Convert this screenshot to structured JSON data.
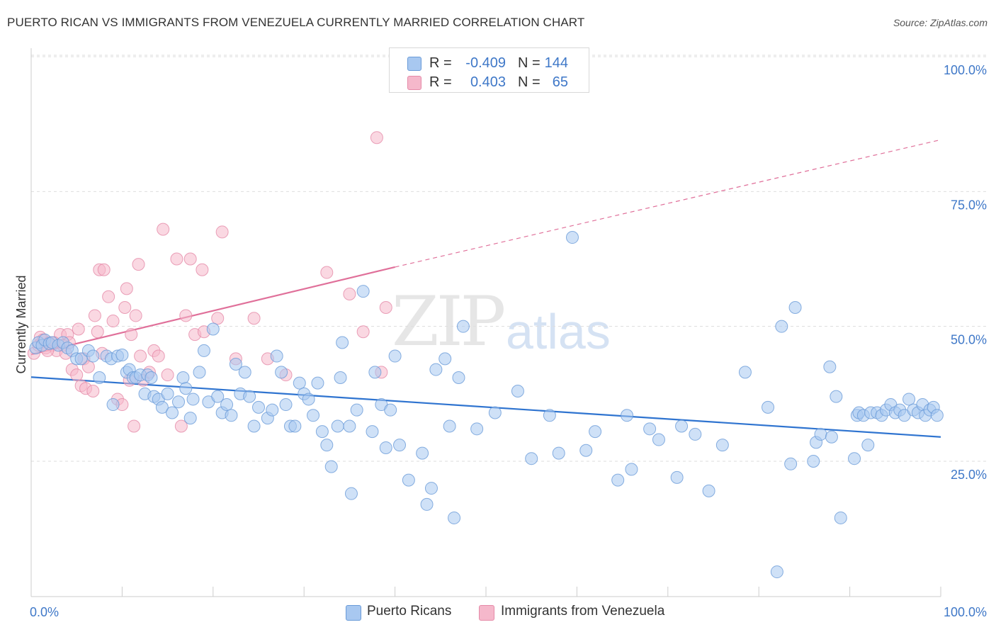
{
  "title": "PUERTO RICAN VS IMMIGRANTS FROM VENEZUELA CURRENTLY MARRIED CORRELATION CHART",
  "source": "Source: ZipAtlas.com",
  "watermark": {
    "zip": "ZIP",
    "atlas": "atlas"
  },
  "legend": {
    "rows": [
      {
        "r_label": "R =",
        "r_value": "-0.409",
        "n_label": "N =",
        "n_value": "144",
        "color": "#a8c8f0",
        "border": "#6a9bd8"
      },
      {
        "r_label": "R =",
        "r_value": "0.403",
        "n_label": "N =",
        "n_value": "65",
        "color": "#f5b8cb",
        "border": "#e58aa8"
      }
    ]
  },
  "bottom_legend": {
    "series1": "Puerto Ricans",
    "series2": "Immigrants from Venezuela"
  },
  "colors": {
    "blue_fill": "#a8c8f0",
    "blue_stroke": "#6a9bd8",
    "blue_line": "#2f74d0",
    "pink_fill": "#f5b8cb",
    "pink_stroke": "#e58aa8",
    "pink_line": "#e0709a",
    "tick_text": "#3f78c8",
    "grid": "#dddddd"
  },
  "chart_data": {
    "type": "scatter",
    "title": "PUERTO RICAN VS IMMIGRANTS FROM VENEZUELA CURRENTLY MARRIED CORRELATION CHART",
    "xlabel": "",
    "ylabel": "Currently Married",
    "xlim": [
      0,
      100
    ],
    "ylim": [
      0,
      105
    ],
    "x_tick_labels": [
      "0.0%",
      "100.0%"
    ],
    "y_tick_labels": [
      "25.0%",
      "50.0%",
      "75.0%",
      "100.0%"
    ],
    "y_ticks": [
      25,
      50,
      75,
      100
    ],
    "grid": "horizontal dashed",
    "legend_placement": "top-center",
    "series": [
      {
        "name": "Puerto Ricans",
        "color": "#a8c8f0",
        "trend": {
          "x": [
            0,
            100
          ],
          "y": [
            40.6,
            29.5
          ],
          "style": "solid"
        },
        "points": [
          [
            0.5,
            46
          ],
          [
            0.8,
            47
          ],
          [
            1.2,
            46.5
          ],
          [
            1.5,
            47.5
          ],
          [
            2.0,
            46.8
          ],
          [
            2.3,
            47
          ],
          [
            3.0,
            46.5
          ],
          [
            3.5,
            47
          ],
          [
            4.0,
            46
          ],
          [
            4.5,
            45.5
          ],
          [
            5.0,
            44
          ],
          [
            5.5,
            44
          ],
          [
            6.3,
            45.5
          ],
          [
            6.8,
            44.5
          ],
          [
            7.5,
            40.5
          ],
          [
            8.3,
            44.5
          ],
          [
            8.8,
            44
          ],
          [
            9.0,
            35.5
          ],
          [
            9.5,
            44.5
          ],
          [
            10.0,
            44.7
          ],
          [
            10.5,
            41.5
          ],
          [
            10.8,
            42
          ],
          [
            11.2,
            40.5
          ],
          [
            11.5,
            40.5
          ],
          [
            12.0,
            41
          ],
          [
            12.5,
            37.5
          ],
          [
            12.8,
            41
          ],
          [
            13.2,
            40.5
          ],
          [
            13.5,
            37
          ],
          [
            14.0,
            36.5
          ],
          [
            14.4,
            35
          ],
          [
            15.0,
            37.5
          ],
          [
            15.5,
            34
          ],
          [
            16.2,
            36
          ],
          [
            16.7,
            40.5
          ],
          [
            17.0,
            38.5
          ],
          [
            17.5,
            33
          ],
          [
            17.8,
            36.5
          ],
          [
            18.5,
            41.5
          ],
          [
            19.0,
            45.5
          ],
          [
            19.5,
            36
          ],
          [
            20.0,
            49.5
          ],
          [
            20.5,
            37
          ],
          [
            21.0,
            34
          ],
          [
            21.5,
            35.5
          ],
          [
            22.0,
            33.5
          ],
          [
            22.5,
            43
          ],
          [
            23.0,
            37.5
          ],
          [
            23.5,
            41.5
          ],
          [
            24.0,
            37
          ],
          [
            24.5,
            31.5
          ],
          [
            25.0,
            35
          ],
          [
            26.0,
            33
          ],
          [
            26.5,
            34.5
          ],
          [
            27.0,
            44.5
          ],
          [
            27.5,
            41.5
          ],
          [
            28.0,
            35.5
          ],
          [
            28.5,
            31.5
          ],
          [
            29.0,
            31.5
          ],
          [
            29.5,
            39.5
          ],
          [
            30.0,
            37.5
          ],
          [
            30.5,
            36.5
          ],
          [
            31.0,
            33.5
          ],
          [
            31.5,
            39.5
          ],
          [
            32.0,
            30.5
          ],
          [
            32.5,
            28
          ],
          [
            33.0,
            24
          ],
          [
            33.7,
            31.5
          ],
          [
            34.0,
            40.5
          ],
          [
            34.2,
            47
          ],
          [
            35.0,
            31.5
          ],
          [
            35.2,
            19
          ],
          [
            35.8,
            34.5
          ],
          [
            36.5,
            56.5
          ],
          [
            37.5,
            30.5
          ],
          [
            37.8,
            41.5
          ],
          [
            38.5,
            35.5
          ],
          [
            39.0,
            27.5
          ],
          [
            39.5,
            34.5
          ],
          [
            40.0,
            44.5
          ],
          [
            40.5,
            28
          ],
          [
            41.5,
            21.5
          ],
          [
            43.0,
            26.5
          ],
          [
            43.5,
            17
          ],
          [
            44.0,
            20
          ],
          [
            44.5,
            42
          ],
          [
            45.5,
            44
          ],
          [
            46.0,
            31.5
          ],
          [
            46.5,
            14.5
          ],
          [
            47.0,
            40.5
          ],
          [
            47.5,
            50
          ],
          [
            49.0,
            31
          ],
          [
            51.0,
            34
          ],
          [
            53.5,
            38
          ],
          [
            55.0,
            25.5
          ],
          [
            57.0,
            33.5
          ],
          [
            58.0,
            26.5
          ],
          [
            59.5,
            66.5
          ],
          [
            61.0,
            27
          ],
          [
            62.0,
            30.5
          ],
          [
            64.5,
            21.5
          ],
          [
            65.5,
            33.5
          ],
          [
            66.0,
            23.5
          ],
          [
            68.0,
            31
          ],
          [
            69.0,
            29
          ],
          [
            71.0,
            22
          ],
          [
            71.5,
            31.5
          ],
          [
            73.0,
            30
          ],
          [
            74.5,
            19.5
          ],
          [
            76.0,
            28
          ],
          [
            78.5,
            41.5
          ],
          [
            81.0,
            35
          ],
          [
            82.0,
            4.5
          ],
          [
            82.5,
            50
          ],
          [
            83.5,
            24.5
          ],
          [
            84.0,
            53.5
          ],
          [
            86.0,
            25
          ],
          [
            86.3,
            28.5
          ],
          [
            86.8,
            30
          ],
          [
            87.8,
            42.5
          ],
          [
            88.0,
            29.5
          ],
          [
            88.5,
            37
          ],
          [
            89.0,
            14.5
          ],
          [
            90.5,
            25.5
          ],
          [
            90.8,
            33.5
          ],
          [
            91.0,
            34
          ],
          [
            91.5,
            33.5
          ],
          [
            92.0,
            28
          ],
          [
            92.3,
            34
          ],
          [
            93.0,
            34
          ],
          [
            93.5,
            33.5
          ],
          [
            94.0,
            34.5
          ],
          [
            94.5,
            35.5
          ],
          [
            95.0,
            34
          ],
          [
            95.5,
            34.5
          ],
          [
            96.0,
            33.5
          ],
          [
            96.5,
            36.5
          ],
          [
            97.0,
            34.5
          ],
          [
            97.5,
            34
          ],
          [
            98.0,
            35.5
          ],
          [
            98.3,
            33.5
          ],
          [
            98.8,
            34.5
          ],
          [
            99.2,
            35
          ],
          [
            99.6,
            33.5
          ]
        ]
      },
      {
        "name": "Immigrants from Venezuela",
        "color": "#f5b8cb",
        "trend": {
          "x": [
            0,
            40
          ],
          "y": [
            44.8,
            61
          ],
          "style": "solid",
          "extension_to_x": 100,
          "extension_y": 84.6,
          "extension_style": "dashed"
        },
        "points": [
          [
            0.3,
            45
          ],
          [
            0.8,
            46.5
          ],
          [
            1.0,
            48
          ],
          [
            1.3,
            47.5
          ],
          [
            1.6,
            46
          ],
          [
            2.0,
            47
          ],
          [
            2.3,
            46.5
          ],
          [
            2.8,
            45.5
          ],
          [
            3.2,
            48.5
          ],
          [
            3.5,
            46.5
          ],
          [
            3.8,
            45
          ],
          [
            4.0,
            48.5
          ],
          [
            4.2,
            47
          ],
          [
            4.5,
            42
          ],
          [
            5.0,
            41
          ],
          [
            5.2,
            49.5
          ],
          [
            5.5,
            39
          ],
          [
            5.8,
            44
          ],
          [
            6.0,
            38.5
          ],
          [
            6.3,
            42.5
          ],
          [
            6.8,
            38
          ],
          [
            7.0,
            52
          ],
          [
            7.3,
            49
          ],
          [
            7.8,
            45
          ],
          [
            7.5,
            60.5
          ],
          [
            8.0,
            60.5
          ],
          [
            8.5,
            55.5
          ],
          [
            9.0,
            51
          ],
          [
            9.5,
            36.5
          ],
          [
            10.0,
            35.5
          ],
          [
            10.3,
            53.5
          ],
          [
            10.5,
            57
          ],
          [
            10.8,
            40
          ],
          [
            11.0,
            48.5
          ],
          [
            11.3,
            31.5
          ],
          [
            11.5,
            52
          ],
          [
            11.8,
            61.5
          ],
          [
            12.0,
            44.5
          ],
          [
            12.3,
            40
          ],
          [
            13.0,
            41.5
          ],
          [
            13.5,
            45.5
          ],
          [
            14.0,
            44.5
          ],
          [
            14.5,
            68
          ],
          [
            15.0,
            41
          ],
          [
            16.0,
            62.5
          ],
          [
            17.0,
            52
          ],
          [
            16.5,
            31.5
          ],
          [
            18.0,
            48.5
          ],
          [
            18.8,
            60.5
          ],
          [
            17.5,
            62.5
          ],
          [
            19.0,
            49
          ],
          [
            20.5,
            51.5
          ],
          [
            21.0,
            67.5
          ],
          [
            22.5,
            44
          ],
          [
            24.5,
            51.5
          ],
          [
            26.0,
            44
          ],
          [
            28.0,
            41
          ],
          [
            32.5,
            60
          ],
          [
            35.0,
            56
          ],
          [
            36.5,
            49
          ],
          [
            38.5,
            41.5
          ],
          [
            38.0,
            85
          ],
          [
            39.0,
            53.5
          ],
          [
            2.5,
            47
          ],
          [
            1.8,
            45.5
          ]
        ]
      }
    ]
  }
}
